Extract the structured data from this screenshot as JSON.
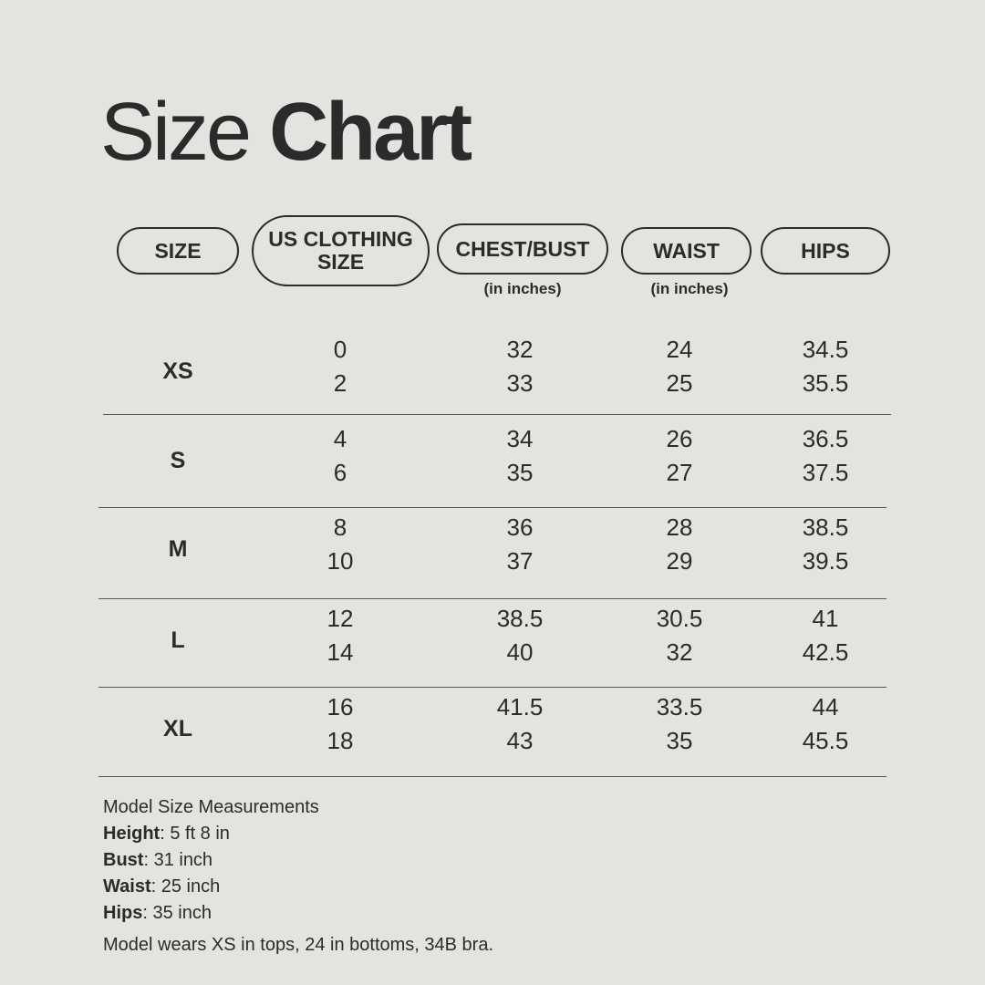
{
  "title": {
    "light": "Size",
    "bold": "Chart"
  },
  "headers": [
    {
      "label": "SIZE",
      "sub": ""
    },
    {
      "label": "US CLOTHING SIZE",
      "sub": ""
    },
    {
      "label": "CHEST/BUST",
      "sub": "(in inches)"
    },
    {
      "label": "WAIST",
      "sub": "(in inches)"
    },
    {
      "label": "HIPS",
      "sub": ""
    }
  ],
  "rows": [
    {
      "size": "XS",
      "us": [
        "0",
        "2"
      ],
      "chest": [
        "32",
        "33"
      ],
      "waist": [
        "24",
        "25"
      ],
      "hips": [
        "34.5",
        "35.5"
      ]
    },
    {
      "size": "S",
      "us": [
        "4",
        "6"
      ],
      "chest": [
        "34",
        "35"
      ],
      "waist": [
        "26",
        "27"
      ],
      "hips": [
        "36.5",
        "37.5"
      ]
    },
    {
      "size": "M",
      "us": [
        "8",
        "10"
      ],
      "chest": [
        "36",
        "37"
      ],
      "waist": [
        "28",
        "29"
      ],
      "hips": [
        "38.5",
        "39.5"
      ]
    },
    {
      "size": "L",
      "us": [
        "12",
        "14"
      ],
      "chest": [
        "38.5",
        "40"
      ],
      "waist": [
        "30.5",
        "32"
      ],
      "hips": [
        "41",
        "42.5"
      ]
    },
    {
      "size": "XL",
      "us": [
        "16",
        "18"
      ],
      "chest": [
        "41.5",
        "43"
      ],
      "waist": [
        "33.5",
        "35"
      ],
      "hips": [
        "44",
        "45.5"
      ]
    }
  ],
  "model": {
    "heading": "Model Size Measurements",
    "items": [
      {
        "label": "Height",
        "value": ": 5 ft 8 in"
      },
      {
        "label": "Bust",
        "value": ": 31 inch"
      },
      {
        "label": "Waist",
        "value": ": 25 inch"
      },
      {
        "label": "Hips",
        "value": ": 35 inch"
      }
    ],
    "note": "Model wears XS in tops, 24 in bottoms, 34B bra."
  },
  "colors": {
    "background": "#e4e3df",
    "text": "#2b2b2b"
  }
}
